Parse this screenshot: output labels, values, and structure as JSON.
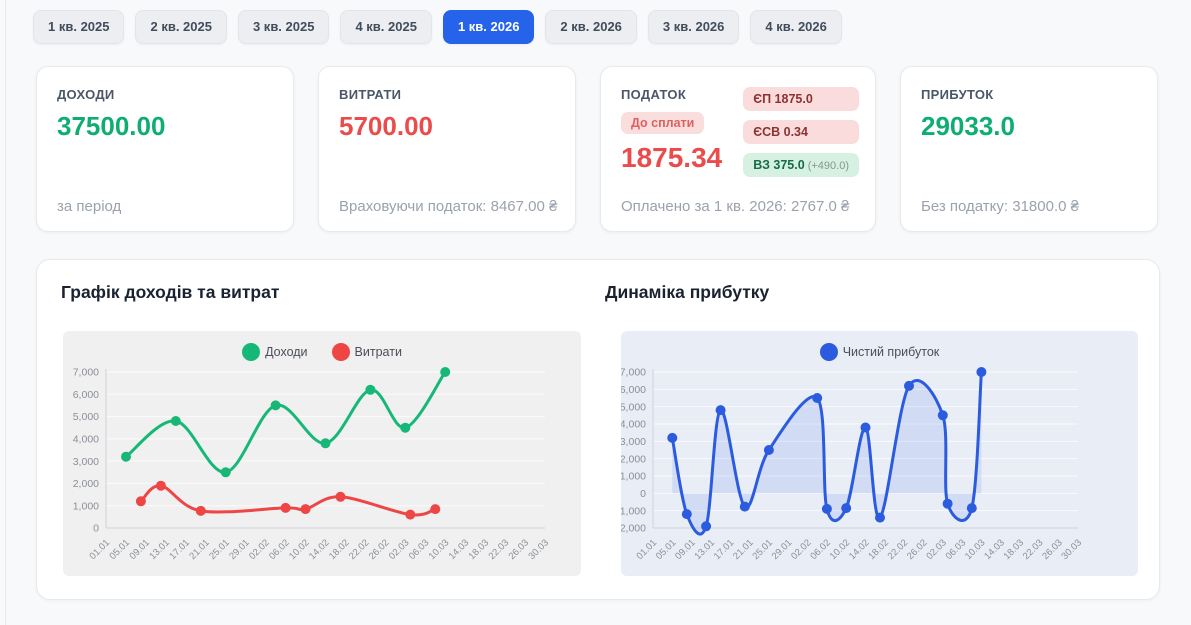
{
  "tabs": {
    "items": [
      {
        "label": "1 кв. 2025",
        "active": false
      },
      {
        "label": "2 кв. 2025",
        "active": false
      },
      {
        "label": "3 кв. 2025",
        "active": false
      },
      {
        "label": "4 кв. 2025",
        "active": false
      },
      {
        "label": "1 кв. 2026",
        "active": true
      },
      {
        "label": "2 кв. 2026",
        "active": false
      },
      {
        "label": "3 кв. 2026",
        "active": false
      },
      {
        "label": "4 кв. 2026",
        "active": false
      }
    ],
    "active_color": "#2563eb"
  },
  "cards": {
    "income": {
      "title": "ДОХОДИ",
      "value": "37500.00",
      "footer": "за період",
      "value_color": "#0eae73"
    },
    "expenses": {
      "title": "ВИТРАТИ",
      "value": "5700.00",
      "footer": "Враховуючи податок: 8467.00 ₴",
      "value_color": "#ea4b4b"
    },
    "tax": {
      "title": "ПОДАТОК",
      "due_badge": "До сплати",
      "value": "1875.34",
      "value_color": "#ea4b4b",
      "badges": [
        {
          "label": "ЄП 1875.0",
          "extra": "",
          "type": "red"
        },
        {
          "label": "ЄСВ 0.34",
          "extra": "",
          "type": "red"
        },
        {
          "label": "ВЗ 375.0",
          "extra": "(+490.0)",
          "type": "green"
        }
      ],
      "footer": "Оплачено за 1 кв. 2026: 2767.0 ₴"
    },
    "profit": {
      "title": "ПРИБУТОК",
      "value": "29033.0",
      "footer": "Без податку: 31800.0 ₴",
      "value_color": "#0eae73"
    }
  },
  "chart_data": [
    {
      "type": "line",
      "title": "Графік доходів та витрат",
      "x_ticks": [
        "01.01",
        "05.01",
        "09.01",
        "13.01",
        "17.01",
        "21.01",
        "25.01",
        "29.01",
        "02.02",
        "06.02",
        "10.02",
        "14.02",
        "18.02",
        "22.02",
        "26.02",
        "02.03",
        "06.03",
        "10.03",
        "14.03",
        "18.03",
        "22.03",
        "26.03",
        "30.03"
      ],
      "ylim": [
        0,
        7000
      ],
      "y_step": 1000,
      "grid": true,
      "legend_position": "top-center",
      "series": [
        {
          "name": "Доходи",
          "color": "#17b877",
          "points": [
            [
              "05.01",
              3200
            ],
            [
              "15.01",
              4800
            ],
            [
              "25.01",
              2500
            ],
            [
              "04.02",
              5500
            ],
            [
              "14.02",
              3800
            ],
            [
              "23.02",
              6200
            ],
            [
              "02.03",
              4500
            ],
            [
              "10.03",
              7000
            ]
          ]
        },
        {
          "name": "Витрати",
          "color": "#ee4545",
          "points": [
            [
              "08.01",
              1200
            ],
            [
              "12.01",
              1900
            ],
            [
              "20.01",
              767
            ],
            [
              "06.02",
              900
            ],
            [
              "10.02",
              850
            ],
            [
              "17.02",
              1400
            ],
            [
              "03.03",
              600
            ],
            [
              "08.03",
              850
            ]
          ]
        }
      ]
    },
    {
      "type": "area",
      "title": "Динаміка прибутку",
      "x_ticks": [
        "01.01",
        "05.01",
        "09.01",
        "13.01",
        "17.01",
        "21.01",
        "25.01",
        "29.01",
        "02.02",
        "06.02",
        "10.02",
        "14.02",
        "18.02",
        "22.02",
        "26.02",
        "02.03",
        "06.03",
        "10.03",
        "14.03",
        "18.03",
        "22.03",
        "26.03",
        "30.03"
      ],
      "ylim": [
        -2000,
        7000
      ],
      "y_step": 1000,
      "grid": true,
      "legend_position": "top-center",
      "series": [
        {
          "name": "Чистий прибуток",
          "color": "#2b5cdf",
          "fill": "rgba(43,92,223,0.12)",
          "baseline": 0,
          "points": [
            [
              "05.01",
              3200
            ],
            [
              "08.01",
              -1200
            ],
            [
              "12.01",
              -1900
            ],
            [
              "15.01",
              4800
            ],
            [
              "20.01",
              -767
            ],
            [
              "25.01",
              2500
            ],
            [
              "04.02",
              5500
            ],
            [
              "06.02",
              -900
            ],
            [
              "10.02",
              -850
            ],
            [
              "14.02",
              3800
            ],
            [
              "17.02",
              -1400
            ],
            [
              "23.02",
              6200
            ],
            [
              "02.03",
              4500
            ],
            [
              "03.03",
              -600
            ],
            [
              "08.03",
              -850
            ],
            [
              "10.03",
              7000
            ]
          ]
        }
      ]
    }
  ]
}
